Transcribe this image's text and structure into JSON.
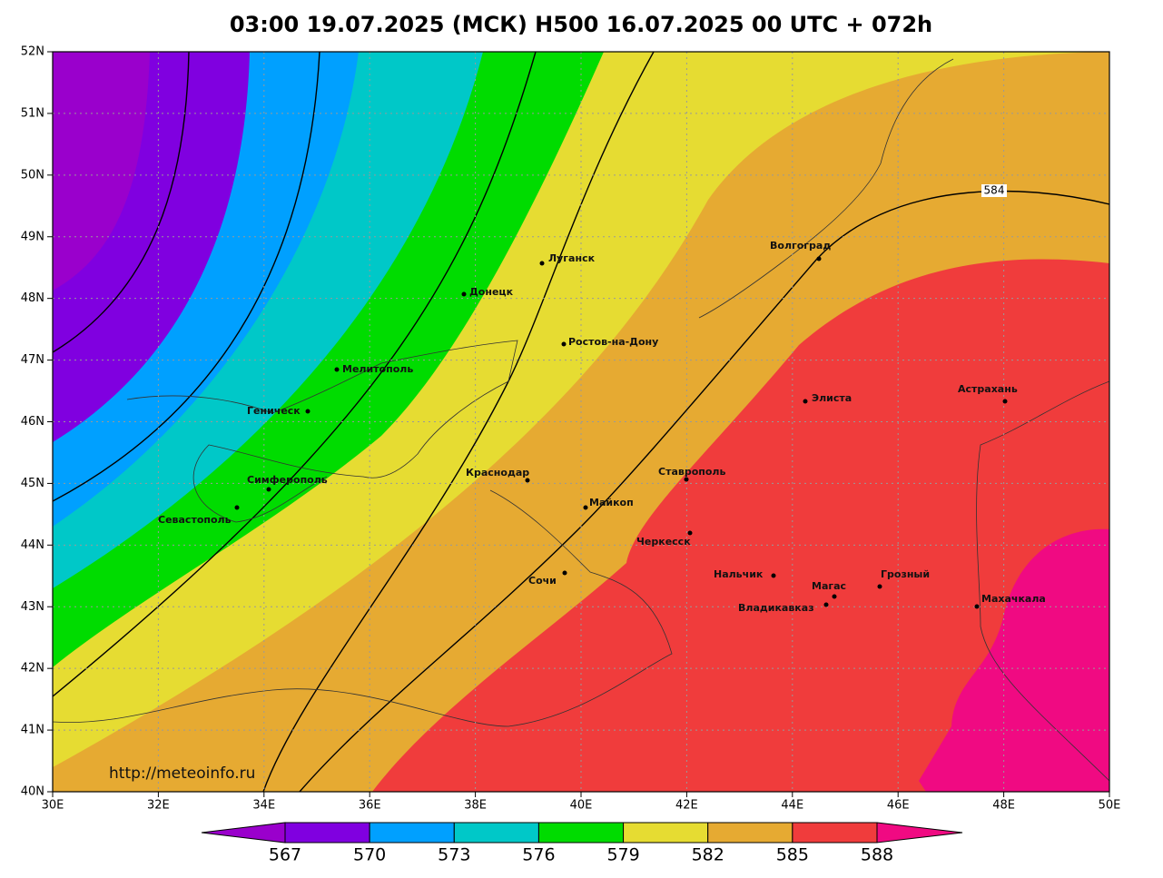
{
  "title": "03:00 19.07.2025 (МСК) H500  16.07.2025 00 UTC + 072h",
  "url": "http://meteoinfo.ru",
  "contour_label": "584",
  "lon_ticks": [
    {
      "value": 30,
      "label": "30E"
    },
    {
      "value": 32,
      "label": "32E"
    },
    {
      "value": 34,
      "label": "34E"
    },
    {
      "value": 36,
      "label": "36E"
    },
    {
      "value": 38,
      "label": "38E"
    },
    {
      "value": 40,
      "label": "40E"
    },
    {
      "value": 42,
      "label": "42E"
    },
    {
      "value": 44,
      "label": "44E"
    },
    {
      "value": 46,
      "label": "46E"
    },
    {
      "value": 48,
      "label": "48E"
    },
    {
      "value": 50,
      "label": "50E"
    }
  ],
  "lat_ticks": [
    {
      "value": 40,
      "label": "40N"
    },
    {
      "value": 41,
      "label": "41N"
    },
    {
      "value": 42,
      "label": "42N"
    },
    {
      "value": 43,
      "label": "43N"
    },
    {
      "value": 44,
      "label": "44N"
    },
    {
      "value": 45,
      "label": "45N"
    },
    {
      "value": 46,
      "label": "46N"
    },
    {
      "value": 47,
      "label": "47N"
    },
    {
      "value": 48,
      "label": "48N"
    },
    {
      "value": 49,
      "label": "49N"
    },
    {
      "value": 50,
      "label": "50N"
    },
    {
      "value": 51,
      "label": "51N"
    },
    {
      "value": 52,
      "label": "52N"
    }
  ],
  "cities": [
    "Луганск",
    "Донецк",
    "Ростов-на-Дону",
    "Мелитополь",
    "Геническ",
    "Симферополь",
    "Севастополь",
    "Краснодар",
    "Майкоп",
    "Ставрополь",
    "Черкесск",
    "Сочи",
    "Нальчик",
    "Магас",
    "Владикавказ",
    "Грозный",
    "Махачкала",
    "Элиста",
    "Астрахань",
    "Волгоград"
  ],
  "colorbar": {
    "values": [
      567,
      570,
      573,
      576,
      579,
      582,
      585,
      588
    ],
    "colors": [
      "#9a00cc",
      "#8000e0",
      "#00a0ff",
      "#00c8c8",
      "#00dc00",
      "#e6dc32",
      "#e6aa32",
      "#f03c3c",
      "#f00a82"
    ]
  }
}
